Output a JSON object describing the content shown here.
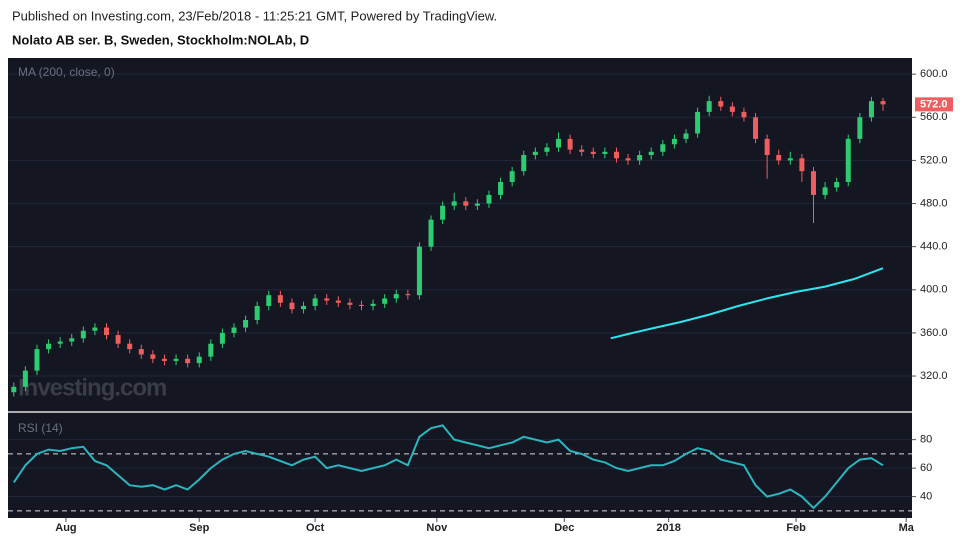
{
  "header": {
    "published": "Published on Investing.com, 23/Feb/2018 - 11:25:21 GMT, Powered by TradingView.",
    "instrument": "Nolato AB ser. B, Sweden, Stockholm:NOLAb, D"
  },
  "watermark": "Investing.com",
  "chart_data": [
    {
      "type": "candlestick",
      "x": [
        0,
        2,
        4,
        6,
        8,
        10,
        12,
        14,
        16,
        18,
        20,
        22,
        24,
        26,
        28,
        30,
        32,
        34,
        36,
        38,
        40,
        42,
        44,
        46,
        48,
        50,
        52,
        54,
        56,
        58,
        60,
        62,
        64,
        66,
        68,
        70,
        72,
        74,
        76,
        78,
        80,
        82,
        84,
        86,
        88,
        90,
        92,
        94,
        96,
        98,
        100,
        102,
        104,
        106,
        108,
        110,
        112,
        114,
        116,
        118,
        120,
        122,
        124,
        126,
        128,
        130,
        132,
        134,
        136,
        138,
        140,
        142,
        144,
        146,
        148,
        150
      ],
      "open": [
        305,
        310,
        325,
        345,
        350,
        352,
        355,
        362,
        365,
        358,
        350,
        345,
        340,
        336,
        334,
        336,
        332,
        338,
        350,
        360,
        365,
        372,
        385,
        395,
        388,
        382,
        385,
        392,
        390,
        388,
        386,
        385,
        387,
        392,
        396,
        395,
        440,
        465,
        478,
        482,
        478,
        480,
        488,
        500,
        510,
        525,
        528,
        532,
        540,
        530,
        528,
        526,
        528,
        522,
        520,
        525,
        528,
        535,
        540,
        545,
        565,
        575,
        570,
        565,
        560,
        540,
        525,
        520,
        522,
        510,
        488,
        495,
        500,
        540,
        560,
        575
      ],
      "high": [
        314,
        329,
        349,
        354,
        356,
        359,
        366,
        369,
        369,
        362,
        354,
        349,
        344,
        340,
        340,
        340,
        342,
        354,
        364,
        369,
        376,
        389,
        399,
        399,
        392,
        389,
        396,
        396,
        394,
        392,
        390,
        391,
        396,
        400,
        400,
        444,
        469,
        482,
        490,
        486,
        484,
        492,
        504,
        514,
        529,
        532,
        536,
        546,
        544,
        534,
        532,
        532,
        532,
        526,
        529,
        532,
        539,
        544,
        549,
        569,
        580,
        579,
        574,
        569,
        564,
        544,
        530,
        528,
        526,
        514,
        500,
        504,
        544,
        564,
        579,
        578
      ],
      "low": [
        301,
        306,
        321,
        341,
        346,
        348,
        351,
        358,
        354,
        346,
        341,
        336,
        332,
        330,
        330,
        328,
        328,
        334,
        346,
        356,
        361,
        368,
        381,
        384,
        378,
        378,
        381,
        386,
        384,
        382,
        381,
        381,
        383,
        388,
        391,
        391,
        436,
        461,
        474,
        474,
        474,
        476,
        484,
        496,
        506,
        521,
        524,
        528,
        526,
        524,
        522,
        522,
        518,
        516,
        516,
        521,
        524,
        531,
        536,
        541,
        561,
        566,
        561,
        556,
        536,
        503,
        516,
        516,
        500,
        462,
        484,
        491,
        496,
        536,
        556,
        566
      ],
      "close": [
        310,
        325,
        345,
        350,
        352,
        355,
        362,
        365,
        358,
        350,
        345,
        340,
        336,
        334,
        336,
        332,
        338,
        350,
        360,
        365,
        372,
        385,
        395,
        388,
        382,
        385,
        392,
        390,
        388,
        386,
        385,
        387,
        392,
        396,
        395,
        440,
        465,
        478,
        482,
        478,
        480,
        488,
        500,
        510,
        525,
        528,
        532,
        540,
        530,
        528,
        526,
        528,
        522,
        520,
        525,
        528,
        535,
        540,
        545,
        565,
        575,
        570,
        565,
        560,
        540,
        525,
        520,
        522,
        510,
        488,
        495,
        500,
        540,
        560,
        575,
        572
      ],
      "up_color": "#2ecc71",
      "down_color": "#f05d5e",
      "xlim": [
        -1,
        155
      ],
      "ylim": [
        288.5,
        615
      ],
      "yticks": [
        {
          "value": 320,
          "label": "320.0"
        },
        {
          "value": 360,
          "label": "360.0"
        },
        {
          "value": 400,
          "label": "400.0"
        },
        {
          "value": 440,
          "label": "440.0"
        },
        {
          "value": 480,
          "label": "480.0"
        },
        {
          "value": 520,
          "label": "520.0"
        },
        {
          "value": 560,
          "label": "560.0"
        },
        {
          "value": 600,
          "label": "600.0"
        }
      ],
      "last_price": {
        "value": 572,
        "label": "572.0"
      },
      "grid": true,
      "series": [
        {
          "name": "MA (200, close, 0)",
          "color": "#2ee6f0",
          "x": [
            103,
            106,
            110,
            115,
            120,
            125,
            130,
            135,
            140,
            145,
            150
          ],
          "values": [
            355,
            359,
            364,
            370,
            377,
            385,
            392,
            398,
            403,
            410,
            420
          ]
        }
      ]
    },
    {
      "type": "line",
      "xlim": [
        -1,
        155
      ],
      "ylim": [
        25,
        98
      ],
      "yticks": [
        40,
        60,
        80
      ],
      "levels": [
        70,
        30
      ],
      "grid": true,
      "xticks": [
        {
          "value": 9,
          "label": "Aug"
        },
        {
          "value": 32,
          "label": "Sep"
        },
        {
          "value": 52,
          "label": "Oct"
        },
        {
          "value": 73,
          "label": "Nov"
        },
        {
          "value": 95,
          "label": "Dec"
        },
        {
          "value": 113,
          "label": "2018"
        },
        {
          "value": 135,
          "label": "Feb"
        },
        {
          "value": 154,
          "label": "Ma"
        }
      ],
      "series": [
        {
          "name": "RSI (14)",
          "color": "#2bb5bf",
          "x": [
            0,
            2,
            4,
            6,
            8,
            10,
            12,
            14,
            16,
            18,
            20,
            22,
            24,
            26,
            28,
            30,
            32,
            34,
            36,
            38,
            40,
            42,
            44,
            46,
            48,
            50,
            52,
            54,
            56,
            58,
            60,
            62,
            64,
            66,
            68,
            70,
            72,
            74,
            76,
            78,
            80,
            82,
            84,
            86,
            88,
            90,
            92,
            94,
            96,
            98,
            100,
            102,
            104,
            106,
            108,
            110,
            112,
            114,
            116,
            118,
            120,
            122,
            124,
            126,
            128,
            130,
            132,
            134,
            136,
            138,
            140,
            142,
            144,
            146,
            148,
            150
          ],
          "values": [
            50,
            62,
            70,
            73,
            72,
            74,
            75,
            65,
            62,
            55,
            48,
            47,
            48,
            45,
            48,
            45,
            52,
            60,
            66,
            70,
            72,
            70,
            68,
            65,
            62,
            66,
            68,
            60,
            62,
            60,
            58,
            60,
            62,
            66,
            62,
            82,
            88,
            90,
            80,
            78,
            76,
            74,
            76,
            78,
            82,
            80,
            78,
            80,
            72,
            70,
            66,
            64,
            60,
            58,
            60,
            62,
            62,
            65,
            70,
            74,
            72,
            66,
            64,
            62,
            48,
            40,
            42,
            45,
            40,
            32,
            40,
            50,
            60,
            66,
            67,
            62
          ]
        }
      ]
    }
  ]
}
